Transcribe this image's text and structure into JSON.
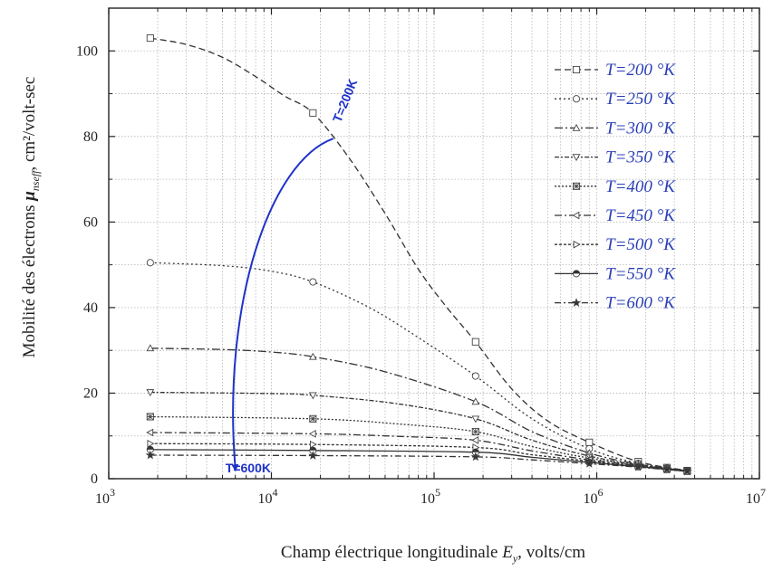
{
  "chart_data": {
    "type": "line",
    "xlabel": {
      "prefix": "Champ électrique longitudinale ",
      "var": "E",
      "sub": "y",
      "suffix": ", volts/cm"
    },
    "ylabel": {
      "prefix": "Mobilité des électrons ",
      "var": "μ",
      "sub": "nseff",
      "suffix": ", cm²/volt-sec"
    },
    "xscale": "log",
    "xlim": [
      1000,
      10000000
    ],
    "ylim": [
      0,
      110
    ],
    "x_ticks": [
      {
        "value": 1000,
        "base": "10",
        "exp": "3"
      },
      {
        "value": 10000,
        "base": "10",
        "exp": "4"
      },
      {
        "value": 100000,
        "base": "10",
        "exp": "5"
      },
      {
        "value": 1000000,
        "base": "10",
        "exp": "6"
      },
      {
        "value": 10000000,
        "base": "10",
        "exp": "7"
      }
    ],
    "y_ticks": [
      "0",
      "20",
      "40",
      "60",
      "80",
      "100"
    ],
    "grid": true,
    "legend_position": "top-right",
    "x": [
      1800,
      18000,
      180000,
      900000,
      1800000,
      2700000,
      3600000
    ],
    "series": [
      {
        "name": "T=200 °K",
        "marker": "square",
        "dash": "7,4",
        "values": [
          103,
          85.5,
          32,
          8.5,
          4,
          2.6,
          1.9
        ],
        "curve": [
          [
            1800,
            103
          ],
          [
            3000,
            101.5
          ],
          [
            5000,
            98.5
          ],
          [
            8000,
            94
          ],
          [
            12000,
            89.5
          ],
          [
            18000,
            85.5
          ],
          [
            30000,
            75
          ],
          [
            50000,
            62
          ],
          [
            80000,
            49
          ],
          [
            120000,
            40
          ],
          [
            180000,
            32
          ],
          [
            300000,
            21
          ],
          [
            500000,
            13.5
          ],
          [
            900000,
            8.5
          ],
          [
            1800000,
            4
          ],
          [
            3600000,
            1.9
          ]
        ]
      },
      {
        "name": "T=250 °K",
        "marker": "circle",
        "dash": "2,3",
        "values": [
          50.5,
          46,
          24,
          7,
          3.6,
          2.5,
          1.9
        ],
        "curve": [
          [
            1800,
            50.5
          ],
          [
            5000,
            49.8
          ],
          [
            10000,
            48.5
          ],
          [
            18000,
            46
          ],
          [
            40000,
            40
          ],
          [
            80000,
            33
          ],
          [
            180000,
            24
          ],
          [
            400000,
            14
          ],
          [
            900000,
            7
          ],
          [
            1800000,
            3.6
          ],
          [
            3600000,
            1.9
          ]
        ]
      },
      {
        "name": "T=300 °K",
        "marker": "triangle-up",
        "dash": "9,3,2,3",
        "values": [
          30.5,
          28.5,
          18,
          6,
          3.4,
          2.4,
          1.8
        ],
        "curve": [
          [
            1800,
            30.5
          ],
          [
            5000,
            30.2
          ],
          [
            10000,
            29.6
          ],
          [
            18000,
            28.5
          ],
          [
            50000,
            25
          ],
          [
            180000,
            18
          ],
          [
            400000,
            11
          ],
          [
            900000,
            6
          ],
          [
            1800000,
            3.4
          ],
          [
            3600000,
            1.8
          ]
        ]
      },
      {
        "name": "T=350 °K",
        "marker": "triangle-down",
        "dash": "5,2,2,2",
        "values": [
          20.2,
          19.5,
          14,
          5.3,
          3.2,
          2.3,
          1.8
        ],
        "curve": [
          [
            1800,
            20.2
          ],
          [
            10000,
            19.9
          ],
          [
            18000,
            19.5
          ],
          [
            60000,
            17.5
          ],
          [
            180000,
            14
          ],
          [
            400000,
            9
          ],
          [
            900000,
            5.3
          ],
          [
            1800000,
            3.2
          ],
          [
            3600000,
            1.8
          ]
        ]
      },
      {
        "name": "T=400 °K",
        "marker": "square-x",
        "dash": "2,2",
        "values": [
          14.5,
          14,
          11,
          4.8,
          3.1,
          2.3,
          1.8
        ],
        "curve": [
          [
            1800,
            14.5
          ],
          [
            18000,
            14
          ],
          [
            60000,
            12.8
          ],
          [
            180000,
            11
          ],
          [
            400000,
            7.5
          ],
          [
            900000,
            4.8
          ],
          [
            1800000,
            3.1
          ],
          [
            3600000,
            1.8
          ]
        ]
      },
      {
        "name": "T=450 °K",
        "marker": "triangle-left",
        "dash": "8,3,2,3",
        "values": [
          10.8,
          10.5,
          9,
          4.4,
          3,
          2.2,
          1.7
        ],
        "curve": [
          [
            1800,
            10.8
          ],
          [
            18000,
            10.5
          ],
          [
            60000,
            9.9
          ],
          [
            180000,
            9
          ],
          [
            400000,
            6.5
          ],
          [
            900000,
            4.4
          ],
          [
            1800000,
            3
          ],
          [
            3600000,
            1.7
          ]
        ]
      },
      {
        "name": "T=500 °K",
        "marker": "triangle-right",
        "dash": "3,2",
        "values": [
          8.2,
          8,
          7.3,
          4.1,
          2.9,
          2.2,
          1.7
        ],
        "curve": [
          [
            1800,
            8.2
          ],
          [
            18000,
            8
          ],
          [
            180000,
            7.3
          ],
          [
            400000,
            5.6
          ],
          [
            900000,
            4.1
          ],
          [
            1800000,
            2.9
          ],
          [
            3600000,
            1.7
          ]
        ]
      },
      {
        "name": "T=550 °K",
        "marker": "half-circle",
        "dash": "",
        "values": [
          6.8,
          6.6,
          6.2,
          3.8,
          2.8,
          2.1,
          1.7
        ],
        "curve": [
          [
            1800,
            6.8
          ],
          [
            18000,
            6.6
          ],
          [
            180000,
            6.2
          ],
          [
            400000,
            5
          ],
          [
            900000,
            3.8
          ],
          [
            1800000,
            2.8
          ],
          [
            3600000,
            1.7
          ]
        ]
      },
      {
        "name": "T=600 °K",
        "marker": "star",
        "dash": "7,3,2,3",
        "values": [
          5.5,
          5.4,
          5.1,
          3.5,
          2.7,
          2.1,
          1.7
        ],
        "curve": [
          [
            1800,
            5.5
          ],
          [
            18000,
            5.4
          ],
          [
            180000,
            5.1
          ],
          [
            400000,
            4.4
          ],
          [
            900000,
            3.5
          ],
          [
            1800000,
            2.7
          ],
          [
            3600000,
            1.7
          ]
        ]
      }
    ],
    "annotations": [
      {
        "text": "T=200K",
        "x": 30000,
        "y": 88,
        "rotate": -68
      },
      {
        "text": "T=600K",
        "x": 7200,
        "y": 1.5,
        "rotate": 0
      }
    ],
    "arrow": {
      "from": [
        24000,
        79.5
      ],
      "to": [
        6000,
        2.5
      ],
      "color": "#1f33c9"
    },
    "colors": {
      "curves": "#333333",
      "legend_text": "#2a3fb5",
      "arrow": "#1f33c9",
      "grid": "#b5b5b5"
    }
  }
}
